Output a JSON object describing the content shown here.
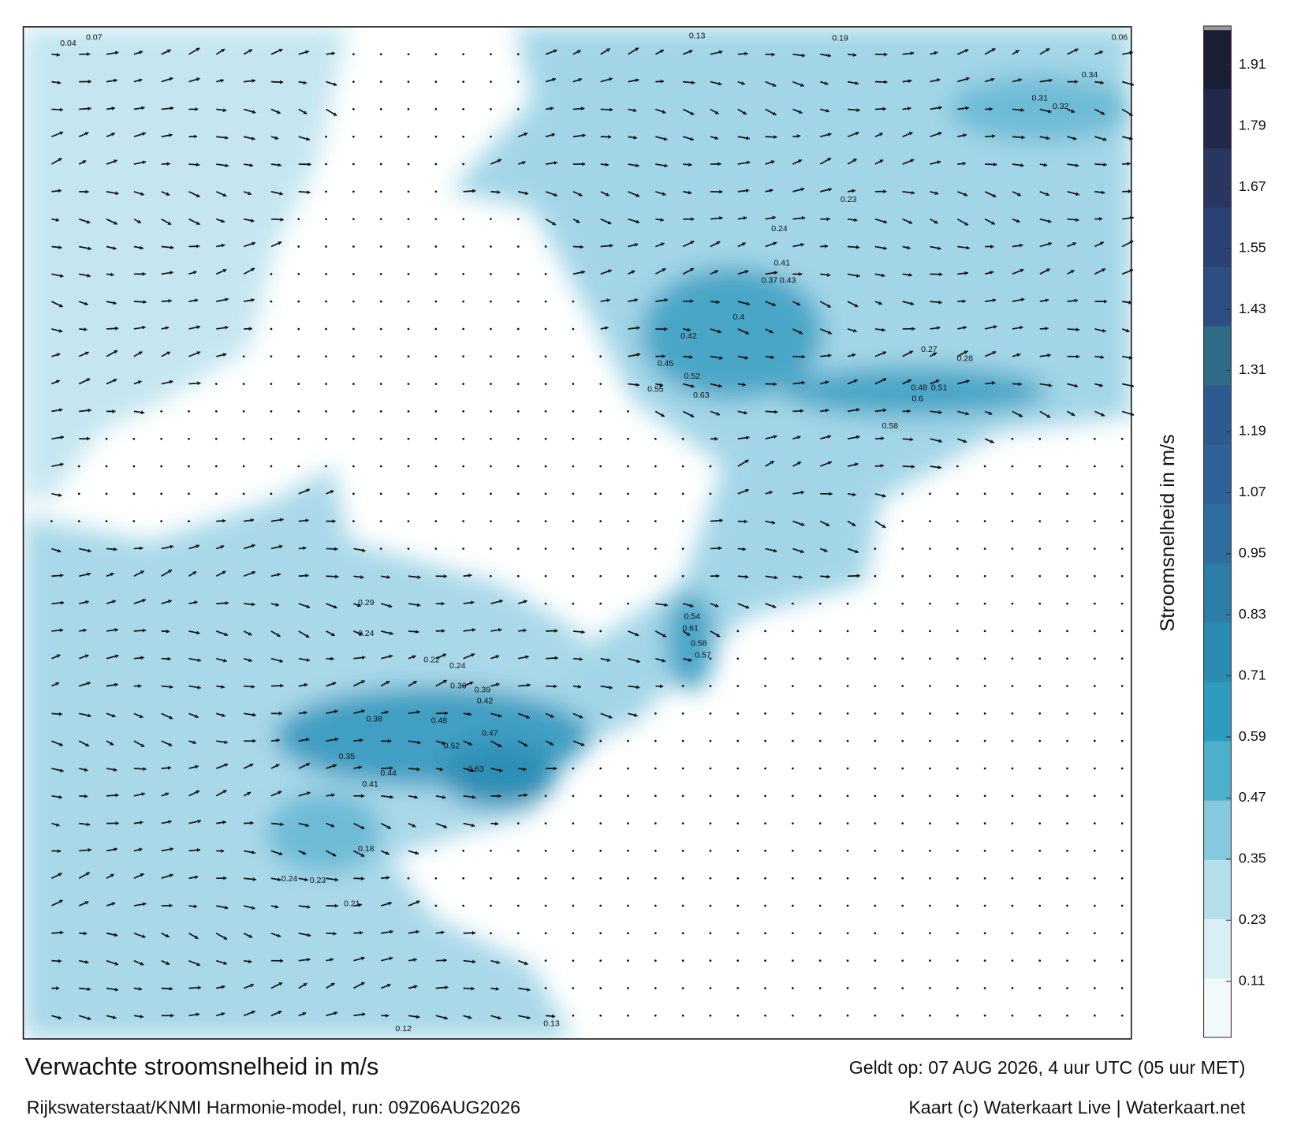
{
  "map": {
    "title": "Verwachte stroomsnelheid in m/s",
    "valid_time": "Geldt op: 07 AUG 2026, 4 uur UTC (05 uur MET)",
    "source": "Rijkswaterstaat/KNMI Harmonie-model, run: 09Z06AUG2026",
    "credit": "Kaart (c) Waterkaart Live | Waterkaart.net",
    "speed_labels": [
      0.34,
      0.31,
      0.32,
      0.41,
      0.37,
      0.43,
      0.4,
      0.42,
      0.63,
      0.55,
      0.52,
      0.45,
      0.51,
      0.48,
      0.6,
      0.58,
      0.54,
      0.61,
      0.58,
      0.57,
      0.48,
      0.47,
      0.52,
      0.63,
      0.44,
      0.41,
      0.38,
      0.35,
      0.39,
      0.42,
      0.36,
      0.22,
      0.24,
      0.29,
      0.24,
      0.18,
      0.21,
      0.24,
      0.23,
      0.13,
      0.12,
      0.04,
      0.07,
      0.13,
      0.19,
      0.06,
      0.24,
      0.23,
      0.27,
      0.28
    ],
    "colorbar": {
      "label": "Stroomsnelheid in m/s",
      "clim": [
        0,
        1.98
      ],
      "ticks": [
        0.11,
        0.23,
        0.35,
        0.47,
        0.59,
        0.71,
        0.83,
        0.95,
        1.07,
        1.19,
        1.31,
        1.43,
        1.55,
        1.67,
        1.79,
        1.91
      ],
      "colors": [
        "#f2f9fb",
        "#d9eef5",
        "#b5deeb",
        "#86c8de",
        "#4fb0cd",
        "#2f9bbf",
        "#2b8bb0",
        "#2b7ea6",
        "#2d6e9e",
        "#2f6299",
        "#2d5b90",
        "#2f6a86",
        "#2d4e82",
        "#2b4274",
        "#283660",
        "#22294a",
        "#1b1f35"
      ]
    }
  }
}
